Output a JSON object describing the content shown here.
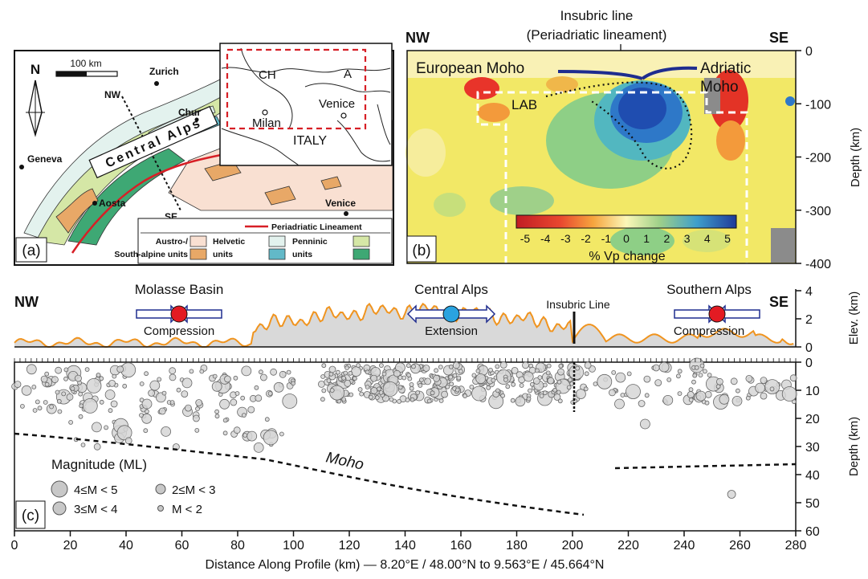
{
  "panel_a": {
    "label": "(a)",
    "north": "N",
    "scale": "100 km",
    "nw": "NW",
    "se": "SE",
    "central_alps": "Central Alps",
    "cities": [
      "Zurich",
      "Chur",
      "Geneva",
      "Aosta",
      "Venice"
    ],
    "inset": {
      "ch": "CH",
      "a": "A",
      "milan": "Milan",
      "venice": "Venice",
      "italy": "ITALY"
    },
    "legend": {
      "line": "Periadriatic Lineament",
      "austro1": "Austro-/",
      "austro2": "South-alpine units",
      "helvetic1": "Helvetic",
      "helvetic2": "units",
      "penninic1": "Penninic",
      "penninic2": "units"
    },
    "colors": {
      "austro_light": "#f9e0d2",
      "austro_dark": "#e8a867",
      "helvetic_light": "#e3f2ee",
      "helvetic_dark": "#62b9c8",
      "penninic_light": "#d5e7a6",
      "penninic_dark": "#3ea874",
      "lineament": "#d71f26"
    }
  },
  "panel_b": {
    "label": "(b)",
    "nw": "NW",
    "se": "SE",
    "insubric1": "Insubric line",
    "insubric2": "(Periadriatic lineament)",
    "european_moho": "European Moho",
    "adriatic1": "Adriatic",
    "adriatic2": "Moho",
    "lab": "LAB",
    "depth_label": "Depth (km)",
    "depth_ticks": [
      "0",
      "-100",
      "-200",
      "-300",
      "-400"
    ],
    "colorbar_ticks": [
      "-5",
      "-4",
      "-3",
      "-2",
      "-1",
      "0",
      "1",
      "2",
      "3",
      "4",
      "5"
    ],
    "colorbar_label": "% Vp change"
  },
  "panel_c": {
    "label": "(c)",
    "nw": "NW",
    "se": "SE",
    "molasse": "Molasse Basin",
    "central": "Central Alps",
    "southern": "Southern Alps",
    "insubric": "Insubric Line",
    "compression": "Compression",
    "extension": "Extension",
    "elev_label": "Elev. (km)",
    "elev_ticks": [
      "0",
      "2",
      "4"
    ],
    "depth_label": "Depth (km)",
    "moho": "Moho",
    "legend_title": "Magnitude (ML)",
    "legend": [
      "4≤M < 5",
      "2≤M < 3",
      "3≤M < 4",
      "M < 2"
    ],
    "x_ticks": [
      "0",
      "20",
      "40",
      "60",
      "80",
      "100",
      "120",
      "140",
      "160",
      "180",
      "200",
      "220",
      "240",
      "260",
      "280"
    ],
    "depth_ticks": [
      "0",
      "10",
      "20",
      "30",
      "40",
      "50",
      "60"
    ],
    "xlabel": "Distance Along Profile (km) — 8.20°E / 48.00°N to 9.563°E / 45.664°N"
  }
}
